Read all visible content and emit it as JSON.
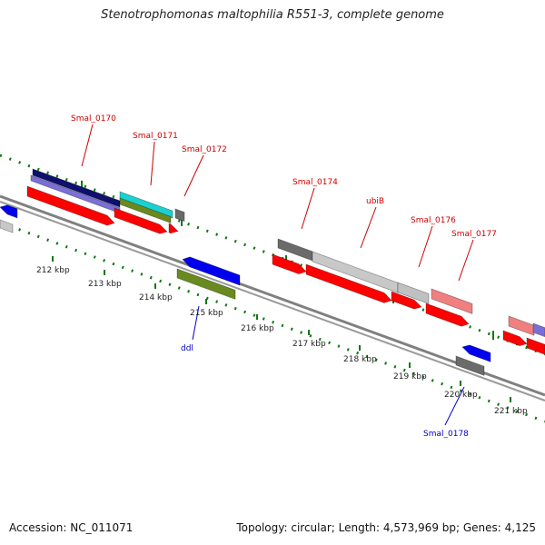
{
  "title": "Stenotrophomonas maltophilia R551-3, complete genome",
  "footer": {
    "accession": "Accession: NC_011071",
    "summary": "Topology: circular; Length: 4,573,969 bp; Genes: 4,125"
  },
  "colors": {
    "forward_gene": "#ff0000",
    "forward_gene_faint": "#f07070",
    "forward_gene_light": "#f08a8a",
    "reverse_gene": "#0000ee",
    "dark_navy": "#0f0f6e",
    "lavender": "#7a6fd6",
    "cyan": "#1ad1d1",
    "olive": "#6a8a20",
    "grey_dark": "#6b6b6b",
    "grey_light": "#c8c8c8",
    "pink": "#f08080",
    "label_red": "#cc0000",
    "label_blue": "#0000cc",
    "tick_green": "#117711",
    "backbone": "#808080"
  },
  "kbp_labels": [
    "212 kbp",
    "213 kbp",
    "214 kbp",
    "215 kbp",
    "216 kbp",
    "217 kbp",
    "218 kbp",
    "219 kbp",
    "220 kbp",
    "221 kbp"
  ],
  "gene_labels": [
    {
      "text": "Smal_0170",
      "color": "label_red"
    },
    {
      "text": "Smal_0171",
      "color": "label_red"
    },
    {
      "text": "Smal_0172",
      "color": "label_red"
    },
    {
      "text": "Smal_0174",
      "color": "label_red"
    },
    {
      "text": "ubiB",
      "color": "label_red"
    },
    {
      "text": "Smal_0176",
      "color": "label_red"
    },
    {
      "text": "Smal_0177",
      "color": "label_red"
    },
    {
      "text": "ddl",
      "color": "label_blue"
    },
    {
      "text": "Smal_0178",
      "color": "label_blue"
    }
  ]
}
